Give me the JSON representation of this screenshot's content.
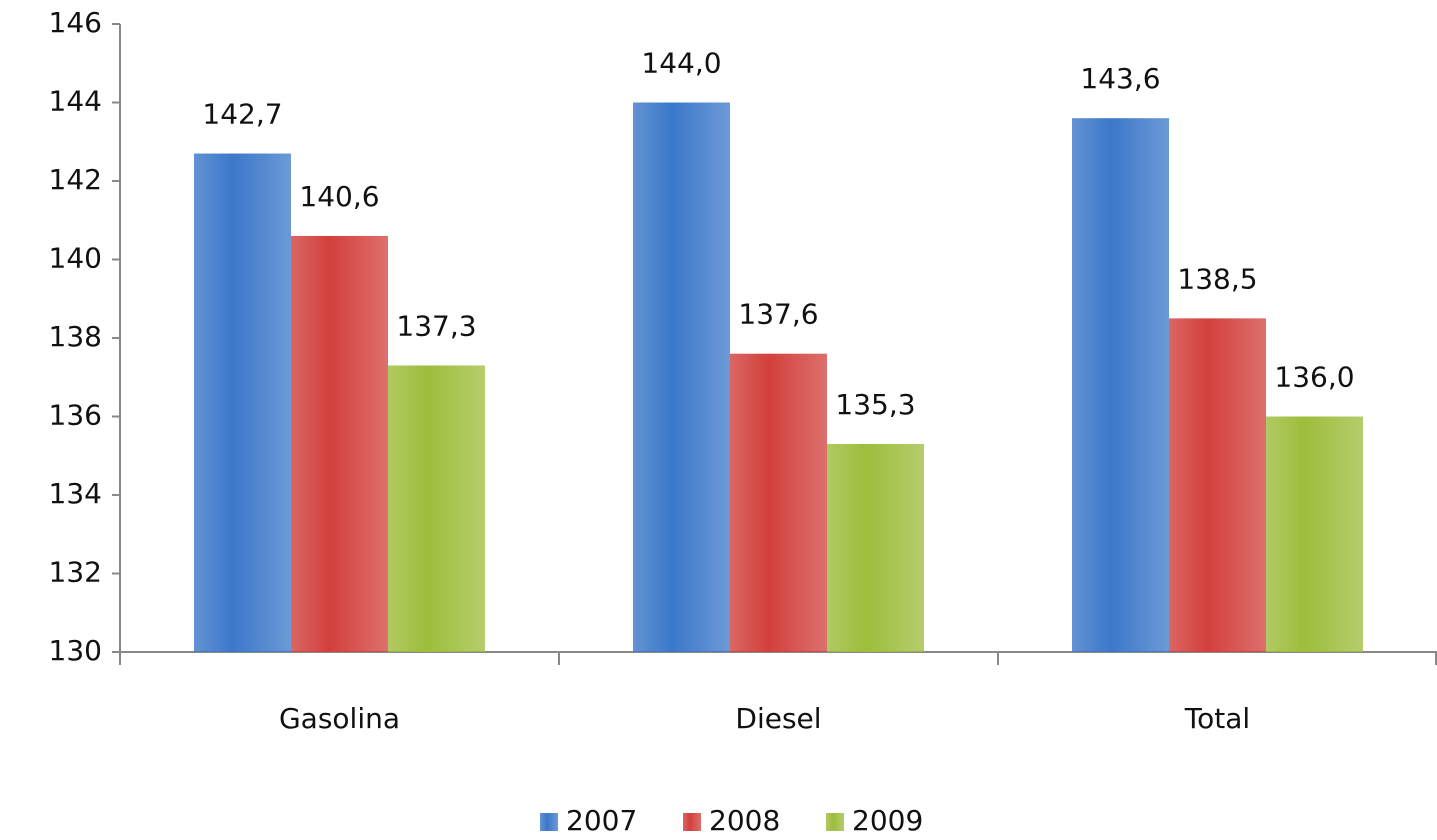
{
  "chart_data": {
    "type": "bar",
    "categories": [
      "Gasolina",
      "Diesel",
      "Total"
    ],
    "series": [
      {
        "name": "2007",
        "color": "#3b78c9",
        "values": [
          142.7,
          144.0,
          143.6
        ],
        "value_labels": [
          "142,7",
          "144,0",
          "143,6"
        ]
      },
      {
        "name": "2008",
        "color": "#d2403c",
        "values": [
          140.6,
          137.6,
          138.5
        ],
        "value_labels": [
          "140,6",
          "137,6",
          "138,5"
        ]
      },
      {
        "name": "2009",
        "color": "#9dbd3c",
        "values": [
          137.3,
          135.3,
          136.0
        ],
        "value_labels": [
          "137,3",
          "135,3",
          "136,0"
        ]
      }
    ],
    "ylim": [
      130,
      146
    ],
    "yticks": [
      130,
      132,
      134,
      136,
      138,
      140,
      142,
      144,
      146
    ],
    "grid": false,
    "legend": "bottom"
  }
}
